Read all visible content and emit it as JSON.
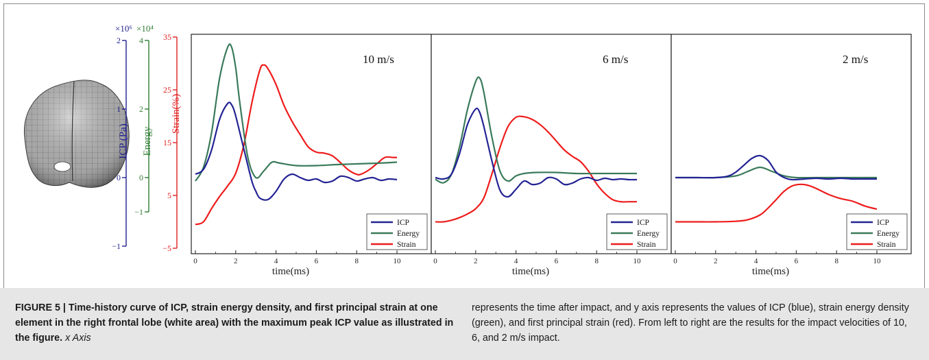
{
  "figure": {
    "axes_left": {
      "icp": {
        "label": "ICP (Pa)",
        "multiplier": "×10⁶",
        "ticks": [
          "2",
          "1",
          "0",
          "−1"
        ],
        "color": "#1f1f8f"
      },
      "energy": {
        "label": "Energy",
        "multiplier": "×10⁴",
        "ticks": [
          "4",
          "2",
          "0",
          "−1"
        ],
        "color": "#2e7d32"
      },
      "strain": {
        "label": "Strain(%)",
        "ticks": [
          "35",
          "25",
          "15",
          "5",
          "−5"
        ],
        "color": "#e02020"
      }
    },
    "panels": [
      {
        "title": "10 m/s"
      },
      {
        "title": "6 m/s"
      },
      {
        "title": "2 m/s"
      }
    ],
    "legend": [
      "ICP",
      "Energy",
      "Strain"
    ],
    "x_ticks": [
      "0",
      "2",
      "4",
      "6",
      "8",
      "10"
    ],
    "xlabel": "time(ms)"
  },
  "chart_data": {
    "type": "line",
    "xlabel": "time(ms)",
    "x_range": [
      0,
      10
    ],
    "legend_position": "bottom-right",
    "axes": {
      "icp": {
        "label": "ICP (Pa)",
        "unit_multiplier": "×10⁶",
        "range": [
          -1,
          2
        ],
        "color": "#1f1f8f"
      },
      "energy": {
        "label": "Energy",
        "unit_multiplier": "×10⁴",
        "range": [
          -1,
          4
        ],
        "color": "#2e7d32"
      },
      "strain": {
        "label": "Strain(%)",
        "range": [
          -5,
          35
        ],
        "color": "#e02020"
      }
    },
    "panels": [
      {
        "title": "10 m/s",
        "series": [
          {
            "name": "ICP",
            "axis": "icp",
            "x": [
              0,
              0.4,
              0.8,
              1.2,
              1.6,
              1.8,
              2.0,
              2.4,
              2.8,
              3.0,
              3.2,
              3.6,
              4.0,
              4.4,
              4.8,
              5.2,
              5.6,
              6.0,
              6.4,
              6.8,
              7.2,
              7.6,
              8.0,
              8.4,
              8.8,
              9.2,
              9.6,
              10.0
            ],
            "y": [
              0.05,
              0.12,
              0.4,
              0.85,
              1.08,
              1.06,
              0.9,
              0.42,
              -0.05,
              -0.2,
              -0.3,
              -0.32,
              -0.2,
              -0.02,
              0.05,
              0.0,
              -0.04,
              -0.02,
              -0.07,
              -0.05,
              0.02,
              0.0,
              -0.05,
              -0.02,
              0.0,
              -0.04,
              -0.02,
              -0.03
            ]
          },
          {
            "name": "Energy",
            "axis": "energy",
            "x": [
              0,
              0.4,
              0.8,
              1.2,
              1.6,
              1.8,
              2.0,
              2.2,
              2.6,
              3.0,
              3.4,
              3.8,
              4.2,
              5.0,
              6.0,
              7.0,
              8.0,
              9.0,
              10.0
            ],
            "y": [
              -0.1,
              0.3,
              1.3,
              2.9,
              3.8,
              3.8,
              3.2,
              2.2,
              0.6,
              0.0,
              0.2,
              0.45,
              0.42,
              0.35,
              0.35,
              0.38,
              0.4,
              0.42,
              0.45
            ]
          },
          {
            "name": "Strain",
            "axis": "strain",
            "x": [
              0,
              0.4,
              0.8,
              1.2,
              1.6,
              2.0,
              2.4,
              2.8,
              3.2,
              3.4,
              3.6,
              4.0,
              4.4,
              4.8,
              5.2,
              5.6,
              6.0,
              6.4,
              6.8,
              7.2,
              7.6,
              8.0,
              8.2,
              8.6,
              9.0,
              9.4,
              9.8,
              10.0
            ],
            "y": [
              -0.5,
              0.0,
              2.5,
              4.8,
              6.8,
              9.2,
              14.5,
              22.5,
              28.8,
              29.7,
              29.0,
              26.0,
              22.0,
              19.0,
              16.5,
              14.2,
              13.2,
              13.0,
              12.5,
              11.2,
              9.8,
              9.0,
              9.0,
              9.8,
              11.0,
              12.2,
              12.2,
              12.2
            ]
          }
        ]
      },
      {
        "title": "6 m/s",
        "series": [
          {
            "name": "ICP",
            "axis": "icp",
            "x": [
              0,
              0.4,
              0.8,
              1.2,
              1.6,
              2.0,
              2.2,
              2.4,
              2.8,
              3.2,
              3.6,
              4.0,
              4.4,
              4.8,
              5.2,
              5.6,
              6.0,
              6.4,
              6.8,
              7.2,
              7.6,
              8.0,
              8.4,
              8.8,
              9.2,
              9.6,
              10.0
            ],
            "y": [
              0.0,
              -0.02,
              0.05,
              0.35,
              0.78,
              1.0,
              0.95,
              0.75,
              0.25,
              -0.18,
              -0.28,
              -0.17,
              -0.05,
              -0.1,
              -0.08,
              0.0,
              -0.02,
              -0.1,
              -0.08,
              -0.02,
              0.0,
              -0.04,
              -0.01,
              -0.03,
              -0.02,
              -0.03,
              -0.03
            ]
          },
          {
            "name": "Energy",
            "axis": "energy",
            "x": [
              0,
              0.4,
              0.8,
              1.2,
              1.6,
              2.0,
              2.2,
              2.4,
              2.8,
              3.2,
              3.6,
              4.0,
              4.4,
              5.0,
              6.0,
              7.0,
              8.0,
              9.0,
              10.0
            ],
            "y": [
              -0.05,
              -0.15,
              0.1,
              0.9,
              2.0,
              2.8,
              2.9,
              2.5,
              1.2,
              0.2,
              -0.1,
              0.05,
              0.12,
              0.15,
              0.15,
              0.12,
              0.12,
              0.12,
              0.12
            ]
          },
          {
            "name": "Strain",
            "axis": "strain",
            "x": [
              0,
              0.4,
              0.8,
              1.2,
              1.6,
              2.0,
              2.4,
              2.8,
              3.2,
              3.6,
              4.0,
              4.4,
              4.8,
              5.2,
              5.6,
              6.0,
              6.4,
              6.8,
              7.2,
              7.6,
              8.0,
              8.4,
              8.8,
              9.2,
              9.6,
              10.0
            ],
            "y": [
              0.0,
              0.0,
              0.3,
              0.8,
              1.5,
              2.5,
              4.5,
              9.0,
              14.0,
              18.0,
              19.8,
              19.9,
              19.4,
              18.4,
              17.0,
              15.3,
              13.6,
              12.4,
              11.4,
              9.6,
              7.2,
              5.4,
              4.2,
              3.8,
              3.8,
              3.8
            ]
          }
        ]
      },
      {
        "title": "2 m/s",
        "series": [
          {
            "name": "ICP",
            "axis": "icp",
            "x": [
              0,
              1.0,
              2.0,
              2.6,
              3.0,
              3.4,
              3.8,
              4.2,
              4.6,
              5.0,
              5.4,
              5.8,
              6.4,
              7.0,
              7.6,
              8.2,
              8.8,
              9.4,
              10.0
            ],
            "y": [
              0.0,
              0.0,
              0.0,
              0.02,
              0.08,
              0.18,
              0.28,
              0.32,
              0.25,
              0.08,
              0.0,
              -0.03,
              -0.02,
              -0.01,
              -0.02,
              -0.01,
              -0.02,
              -0.02,
              -0.02
            ]
          },
          {
            "name": "Energy",
            "axis": "energy",
            "x": [
              0,
              1.0,
              2.0,
              3.0,
              3.6,
              4.2,
              4.8,
              5.4,
              6.0,
              7.0,
              8.0,
              9.0,
              10.0
            ],
            "y": [
              0.0,
              0.0,
              0.0,
              0.05,
              0.18,
              0.3,
              0.18,
              0.05,
              0.0,
              0.0,
              0.0,
              0.0,
              0.0
            ]
          },
          {
            "name": "Strain",
            "axis": "strain",
            "x": [
              0,
              1.0,
              2.0,
              3.0,
              3.6,
              4.2,
              4.6,
              5.0,
              5.4,
              5.8,
              6.2,
              6.6,
              7.0,
              7.6,
              8.2,
              8.8,
              9.4,
              10.0
            ],
            "y": [
              0.0,
              0.0,
              0.0,
              0.1,
              0.4,
              1.3,
              2.6,
              4.2,
              5.8,
              6.8,
              7.1,
              6.9,
              6.3,
              5.2,
              4.4,
              3.9,
              3.0,
              2.4
            ]
          }
        ]
      }
    ]
  },
  "caption": {
    "lead": "FIGURE 5 | Time-history curve of ICP, strain energy density, and first principal strain at one element in the right frontal lobe (white area) with the maximum peak ICP value as illustrated in the figure.",
    "text_left": "x Axis",
    "text_right": "represents the time after impact, and y axis represents the values of ICP (blue), strain energy density (green), and first principal strain (red). From left to right are the results for the impact velocities of 10, 6, and 2 m/s impact."
  }
}
